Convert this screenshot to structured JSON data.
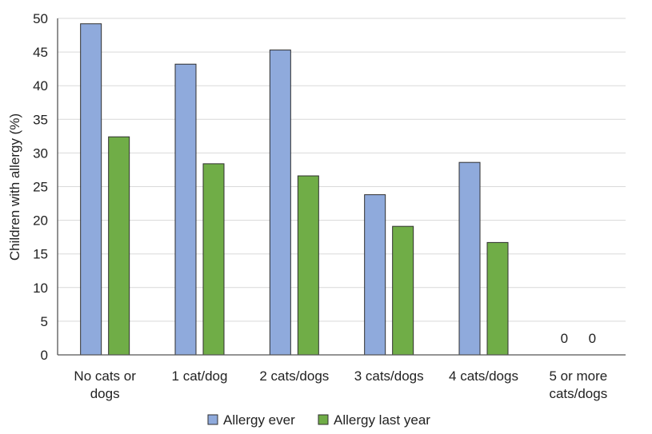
{
  "chart_data": {
    "type": "bar",
    "title": "",
    "xlabel": "",
    "ylabel": "Children with allergy (%)",
    "ylim": [
      0,
      50
    ],
    "yticks": [
      0,
      5,
      10,
      15,
      20,
      25,
      30,
      35,
      40,
      45,
      50
    ],
    "grid": true,
    "legend_position": "bottom",
    "categories": [
      [
        "No cats or",
        "dogs"
      ],
      [
        "1 cat/dog"
      ],
      [
        "2 cats/dogs"
      ],
      [
        "3 cats/dogs"
      ],
      [
        "4 cats/dogs"
      ],
      [
        "5 or more",
        "cats/dogs"
      ]
    ],
    "series": [
      {
        "name": "Allergy ever",
        "color": "#8faadc",
        "values": [
          49.2,
          43.2,
          45.3,
          23.8,
          28.6,
          0
        ]
      },
      {
        "name": "Allergy last year",
        "color": "#70ad47",
        "values": [
          32.4,
          28.4,
          26.6,
          19.1,
          16.7,
          0
        ]
      }
    ],
    "data_labels": [
      {
        "category_index": 5,
        "series_index": 0,
        "text": "0"
      },
      {
        "category_index": 5,
        "series_index": 1,
        "text": "0"
      }
    ]
  }
}
